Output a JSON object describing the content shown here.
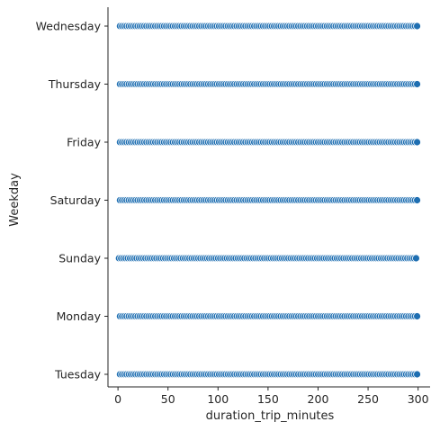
{
  "chart_data": {
    "type": "scatter",
    "title": "",
    "xlabel": "duration_trip_minutes",
    "ylabel": "Weekday",
    "xlim": [
      -10,
      312
    ],
    "xticks": [
      0,
      50,
      100,
      150,
      200,
      250,
      300
    ],
    "categories": [
      "Wednesday",
      "Thursday",
      "Friday",
      "Saturday",
      "Sunday",
      "Monday",
      "Tuesday"
    ],
    "grid": false,
    "legend": "none",
    "point_color": "#1f6fb2",
    "point_edge": "#ffffff",
    "series": [
      {
        "category": "Wednesday",
        "x_min": 2,
        "x_max": 300,
        "step": 2.2
      },
      {
        "category": "Thursday",
        "x_min": 2,
        "x_max": 300,
        "step": 2.2
      },
      {
        "category": "Friday",
        "x_min": 2,
        "x_max": 300,
        "step": 2.2
      },
      {
        "category": "Saturday",
        "x_min": 2,
        "x_max": 300,
        "step": 2.2
      },
      {
        "category": "Sunday",
        "x_min": 1,
        "x_max": 300,
        "step": 2.2
      },
      {
        "category": "Monday",
        "x_min": 2,
        "x_max": 300,
        "step": 2.2
      },
      {
        "category": "Tuesday",
        "x_min": 2,
        "x_max": 300,
        "step": 2.2
      }
    ]
  }
}
